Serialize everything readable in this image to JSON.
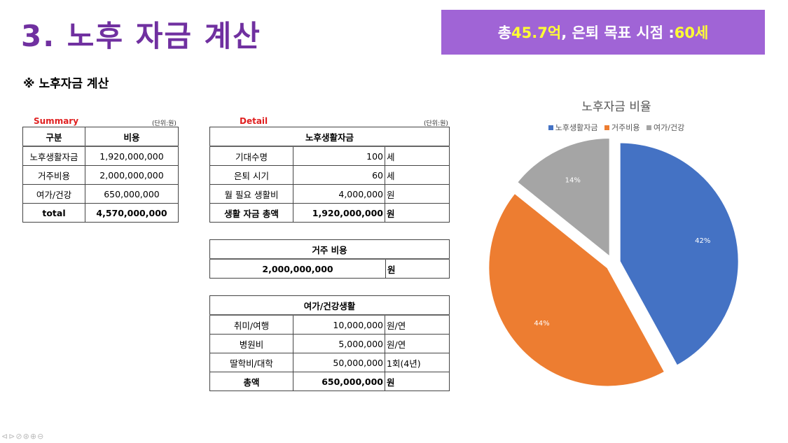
{
  "slide": {
    "title": "3. 노후 자금 계산",
    "banner": {
      "prefix": "총 ",
      "total": "45.7억",
      "middle": ", 은퇴 목표 시점 : ",
      "age": "60세"
    },
    "subtitle": "※ 노후자금 계산"
  },
  "summary": {
    "caption": "Summary",
    "unit": "(단위:원)",
    "headers": [
      "구분",
      "비용"
    ],
    "rows": [
      [
        "노후생활자금",
        "1,920,000,000"
      ],
      [
        "거주비용",
        "2,000,000,000"
      ],
      [
        "여가/건강",
        "650,000,000"
      ]
    ],
    "total": [
      "total",
      "4,570,000,000"
    ]
  },
  "detail": {
    "caption": "Detail",
    "unit": "(단위:원)",
    "living": {
      "header": "노후생활자금",
      "rows": [
        [
          "기대수명",
          "100",
          "세"
        ],
        [
          "은퇴 시기",
          "60",
          "세"
        ],
        [
          "월 필요 생활비",
          "4,000,000",
          "원"
        ]
      ],
      "total": [
        "생활 자금 총액",
        "1,920,000,000",
        "원"
      ]
    },
    "housing": {
      "header": "거주 비용",
      "value": "2,000,000,000",
      "unit": "원"
    },
    "leisure": {
      "header": "여가/건강생활",
      "rows": [
        [
          "취미/여행",
          "10,000,000",
          "원/연"
        ],
        [
          "병원비",
          "5,000,000",
          "원/연"
        ],
        [
          "딸학비/대학",
          "50,000,000",
          "1회(4년)"
        ]
      ],
      "total": [
        "총액",
        "650,000,000",
        "원"
      ]
    }
  },
  "chart_data": {
    "type": "pie",
    "title": "노후자금 비율",
    "legend_position": "top",
    "categories": [
      "노후생활자금",
      "거주비용",
      "여가/건강"
    ],
    "values": [
      1920000000,
      2000000000,
      650000000
    ],
    "labels": [
      "42%",
      "44%",
      "14%"
    ],
    "colors": [
      "#4472c4",
      "#ed7d31",
      "#a5a5a5"
    ],
    "exploded": true
  },
  "toolbar": {
    "icons": [
      "nav-prev-icon",
      "nav-next-icon",
      "pen-icon",
      "view-icon",
      "zoom-icon",
      "more-icon"
    ],
    "glyphs": "⊲⊳⊘⊛⊕⊖"
  }
}
